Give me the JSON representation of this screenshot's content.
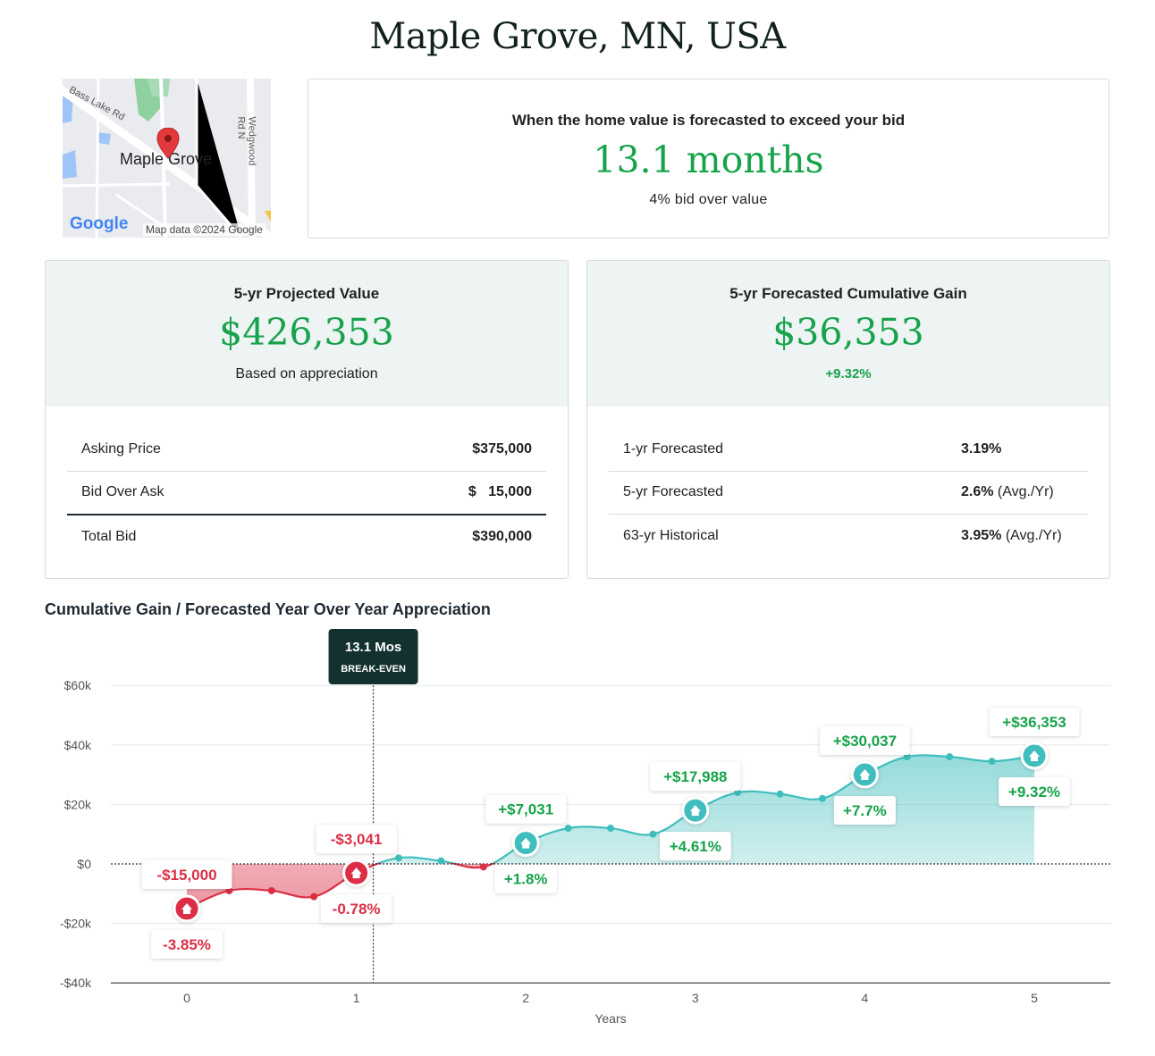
{
  "page_title": "Maple Grove, MN, USA",
  "map": {
    "place_label": "Maple Grove",
    "road_labels": [
      "Bass Lake Rd",
      "Wedgwood Rd N"
    ],
    "logo": "Google",
    "credit": "Map data ©2024 Google",
    "pin_icon": "map-pin-icon"
  },
  "forecast": {
    "label": "When the home value is forecasted to exceed your bid",
    "value": "13.1 months",
    "sub": "4% bid over value"
  },
  "projected": {
    "title": "5-yr Projected Value",
    "value": "$426,353",
    "sub": "Based on appreciation",
    "rows": [
      {
        "label": "Asking Price",
        "value": "$375,000"
      },
      {
        "label": "Bid Over Ask",
        "value": "$   15,000"
      },
      {
        "label": "Total Bid",
        "value": "$390,000"
      }
    ]
  },
  "gain": {
    "title": "5-yr Forecasted Cumulative Gain",
    "value": "$36,353",
    "sub": "+9.32%",
    "rows": [
      {
        "label": "1-yr Forecasted",
        "value": "3.19%",
        "unit": ""
      },
      {
        "label": "5-yr Forecasted",
        "value": "2.6%",
        "unit": " (Avg./Yr)"
      },
      {
        "label": "63-yr Historical",
        "value": "3.95%",
        "unit": " (Avg./Yr)"
      }
    ]
  },
  "colors": {
    "positive": "#16a34a",
    "negative": "#dc2f45",
    "teal": "#3fbdbd",
    "dark": "#12312f"
  },
  "chart_data": {
    "type": "area",
    "title": "Cumulative Gain / Forecasted Year Over Year Appreciation",
    "xlabel": "Years",
    "ylabel": "",
    "xlim": [
      0,
      5
    ],
    "ylim": [
      -40000,
      60000
    ],
    "x_ticks": [
      0,
      1,
      2,
      3,
      4,
      5
    ],
    "y_ticks": [
      60000,
      40000,
      20000,
      0,
      -20000,
      -40000
    ],
    "y_tick_labels": [
      "$60k",
      "$40k",
      "$20k",
      "$0",
      "-$20k",
      "-$40k"
    ],
    "grid": true,
    "break_even": {
      "x": 1.1,
      "label": "13.1 Mos",
      "sublabel": "BREAK-EVEN"
    },
    "series": [
      {
        "points": [
          [
            0,
            -15000
          ],
          [
            0.25,
            -9000
          ],
          [
            0.5,
            -9000
          ],
          [
            0.75,
            -11000
          ],
          [
            1,
            -3041
          ],
          [
            1.25,
            2000
          ],
          [
            1.5,
            1000
          ],
          [
            1.75,
            -1000
          ],
          [
            2,
            7031
          ],
          [
            2.25,
            12000
          ],
          [
            2.5,
            12000
          ],
          [
            2.75,
            10000
          ],
          [
            3,
            17988
          ],
          [
            3.25,
            24000
          ],
          [
            3.5,
            23500
          ],
          [
            3.75,
            22000
          ],
          [
            4,
            30037
          ],
          [
            4.25,
            36000
          ],
          [
            4.5,
            36000
          ],
          [
            4.75,
            34500
          ],
          [
            5,
            36353
          ]
        ]
      }
    ],
    "annotations": [
      {
        "x": 0,
        "gain": "-$15,000",
        "pct": "-3.85%"
      },
      {
        "x": 1,
        "gain": "-$3,041",
        "pct": "-0.78%"
      },
      {
        "x": 2,
        "gain": "+$7,031",
        "pct": "+1.8%"
      },
      {
        "x": 3,
        "gain": "+$17,988",
        "pct": "+4.61%"
      },
      {
        "x": 4,
        "gain": "+$30,037",
        "pct": "+7.7%"
      },
      {
        "x": 5,
        "gain": "+$36,353",
        "pct": "+9.32%"
      }
    ]
  }
}
